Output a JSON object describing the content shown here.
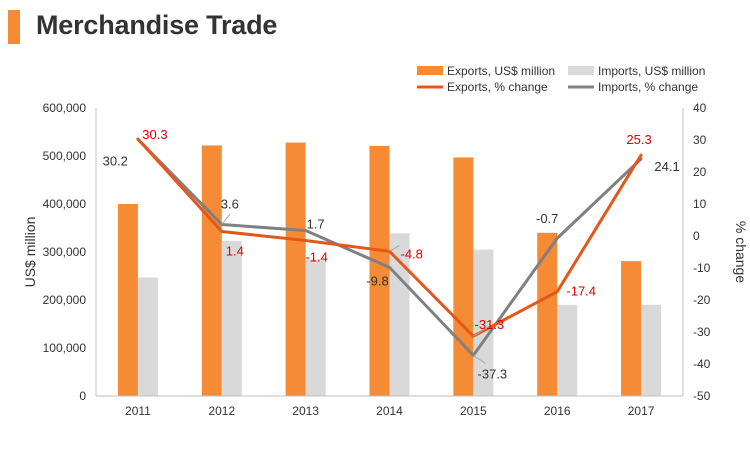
{
  "header": {
    "title": "Merchandise Trade"
  },
  "colors": {
    "accent": "#f68b35",
    "exports_bar": "#f68b35",
    "imports_bar": "#d9d9d9",
    "exports_line": "#e4571b",
    "imports_line": "#808080",
    "exports_label": "#e00000",
    "imports_label": "#333333"
  },
  "chart_data": {
    "type": "bar",
    "title": "Merchandise Trade",
    "categories": [
      "2011",
      "2012",
      "2013",
      "2014",
      "2015",
      "2016",
      "2017"
    ],
    "ylabel": "US$ million",
    "ylim": [
      0,
      600000
    ],
    "yticks": [
      "0",
      "100,000",
      "200,000",
      "300,000",
      "400,000",
      "500,000",
      "600,000"
    ],
    "y2label": "% change",
    "y2lim": [
      -50,
      40
    ],
    "y2ticks": [
      "-50",
      "-40",
      "-30",
      "-20",
      "-10",
      "0",
      "10",
      "20",
      "30",
      "40"
    ],
    "legend_position": "top-right",
    "grid": false,
    "series": [
      {
        "name": "Exports, US$ million",
        "type": "bar",
        "axis": "left",
        "values": [
          400000,
          522000,
          528000,
          521000,
          497000,
          340000,
          281000
        ]
      },
      {
        "name": "Imports, US$ million",
        "type": "bar",
        "axis": "left",
        "values": [
          247000,
          323000,
          285000,
          339000,
          305000,
          190000,
          190000
        ]
      },
      {
        "name": "Exports, % change",
        "type": "line",
        "axis": "right",
        "values": [
          30.3,
          1.4,
          -1.4,
          -4.8,
          -31.3,
          -17.4,
          25.3
        ],
        "labels": [
          "30.3",
          "1.4",
          "-1.4",
          "-4.8",
          "-31.3",
          "-17.4",
          "25.3"
        ]
      },
      {
        "name": "Imports, % change",
        "type": "line",
        "axis": "right",
        "values": [
          30.2,
          3.6,
          1.7,
          -9.8,
          -37.3,
          -0.7,
          24.1
        ],
        "labels": [
          "30.2",
          "3.6",
          "1.7",
          "-9.8",
          "-37.3",
          "-0.7",
          "24.1"
        ]
      }
    ]
  }
}
